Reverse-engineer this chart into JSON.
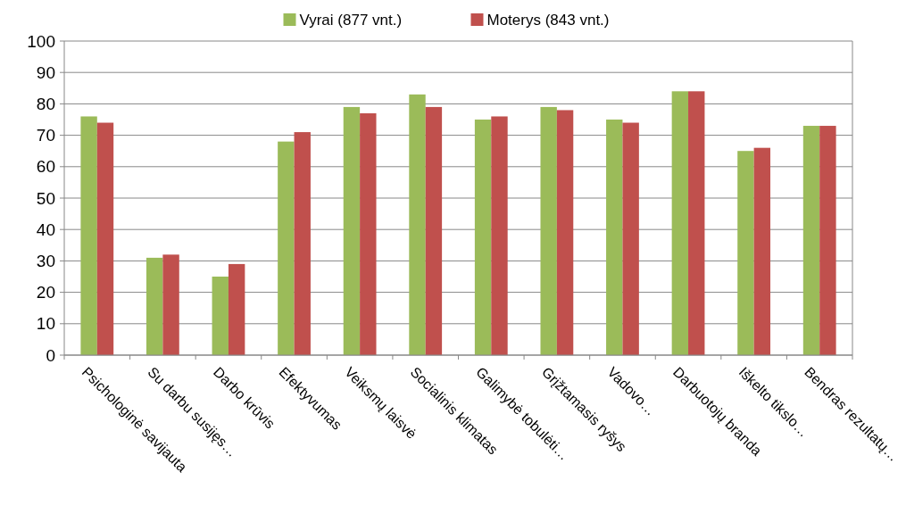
{
  "chart_data": {
    "type": "bar",
    "categories": [
      "Psichologinė savijauta",
      "Su darbu susijęs…",
      "Darbo krūvis",
      "Efektyvumas",
      "Veiksmų laisvė",
      "Socialinis klimatas",
      "Galimybė tobulėti…",
      "Grįžtamasis ryšys",
      "Vadovo…",
      "Darbuotojų branda",
      "Iškelto tikslo…",
      "Bendras rezultatų…"
    ],
    "series": [
      {
        "name": "Vyrai (877 vnt.)",
        "color": "#9bbb59",
        "values": [
          76,
          31,
          25,
          68,
          79,
          83,
          75,
          79,
          75,
          84,
          65,
          73
        ]
      },
      {
        "name": "Moterys (843 vnt.)",
        "color": "#c0504d",
        "values": [
          74,
          32,
          29,
          71,
          77,
          79,
          76,
          78,
          74,
          84,
          66,
          73
        ]
      }
    ],
    "ylim": [
      0,
      100
    ],
    "yticks": [
      0,
      10,
      20,
      30,
      40,
      50,
      60,
      70,
      80,
      90,
      100
    ],
    "grid": "y",
    "legend": "top"
  }
}
